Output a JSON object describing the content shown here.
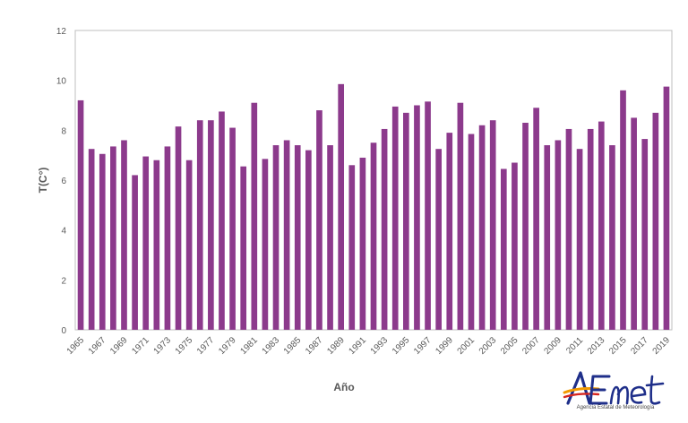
{
  "chart_data": {
    "type": "bar",
    "title": "",
    "xlabel": "Año",
    "ylabel": "T(C°)",
    "ylim": [
      0,
      12
    ],
    "yticks": [
      0,
      2,
      4,
      6,
      8,
      10,
      12
    ],
    "grid": false,
    "legend": "none",
    "bar_color": "#8C3A8C",
    "frame_color": "#BFBFBF",
    "x": [
      1965,
      1966,
      1967,
      1968,
      1969,
      1970,
      1971,
      1972,
      1973,
      1974,
      1975,
      1976,
      1977,
      1978,
      1979,
      1980,
      1981,
      1982,
      1983,
      1984,
      1985,
      1986,
      1987,
      1988,
      1989,
      1990,
      1991,
      1992,
      1993,
      1994,
      1995,
      1996,
      1997,
      1998,
      1999,
      2000,
      2001,
      2002,
      2003,
      2004,
      2005,
      2006,
      2007,
      2008,
      2009,
      2010,
      2011,
      2012,
      2013,
      2014,
      2015,
      2016,
      2017,
      2018,
      2019
    ],
    "x_tick_labels": [
      "1965",
      "1967",
      "1969",
      "1971",
      "1973",
      "1975",
      "1977",
      "1979",
      "1981",
      "1983",
      "1985",
      "1987",
      "1989",
      "1991",
      "1993",
      "1995",
      "1997",
      "1999",
      "2001",
      "2003",
      "2005",
      "2007",
      "2009",
      "2011",
      "2013",
      "2015",
      "2017",
      "2019"
    ],
    "values": [
      9.2,
      7.25,
      7.05,
      7.35,
      7.6,
      6.2,
      6.95,
      6.8,
      7.35,
      8.15,
      6.8,
      8.4,
      8.4,
      8.75,
      8.1,
      6.55,
      9.1,
      6.85,
      7.4,
      7.6,
      7.4,
      7.2,
      8.8,
      7.4,
      9.85,
      6.6,
      6.9,
      7.5,
      8.05,
      8.95,
      8.7,
      9.0,
      9.15,
      7.25,
      7.9,
      9.1,
      7.85,
      8.2,
      8.4,
      6.45,
      6.7,
      8.3,
      8.9,
      7.4,
      7.6,
      8.05,
      7.25,
      8.05,
      8.35,
      7.4,
      9.6,
      8.5,
      7.65,
      8.7,
      9.75
    ]
  },
  "logo": {
    "name": "AEMET",
    "caption": "Agencia Estatal de Meteorología"
  }
}
